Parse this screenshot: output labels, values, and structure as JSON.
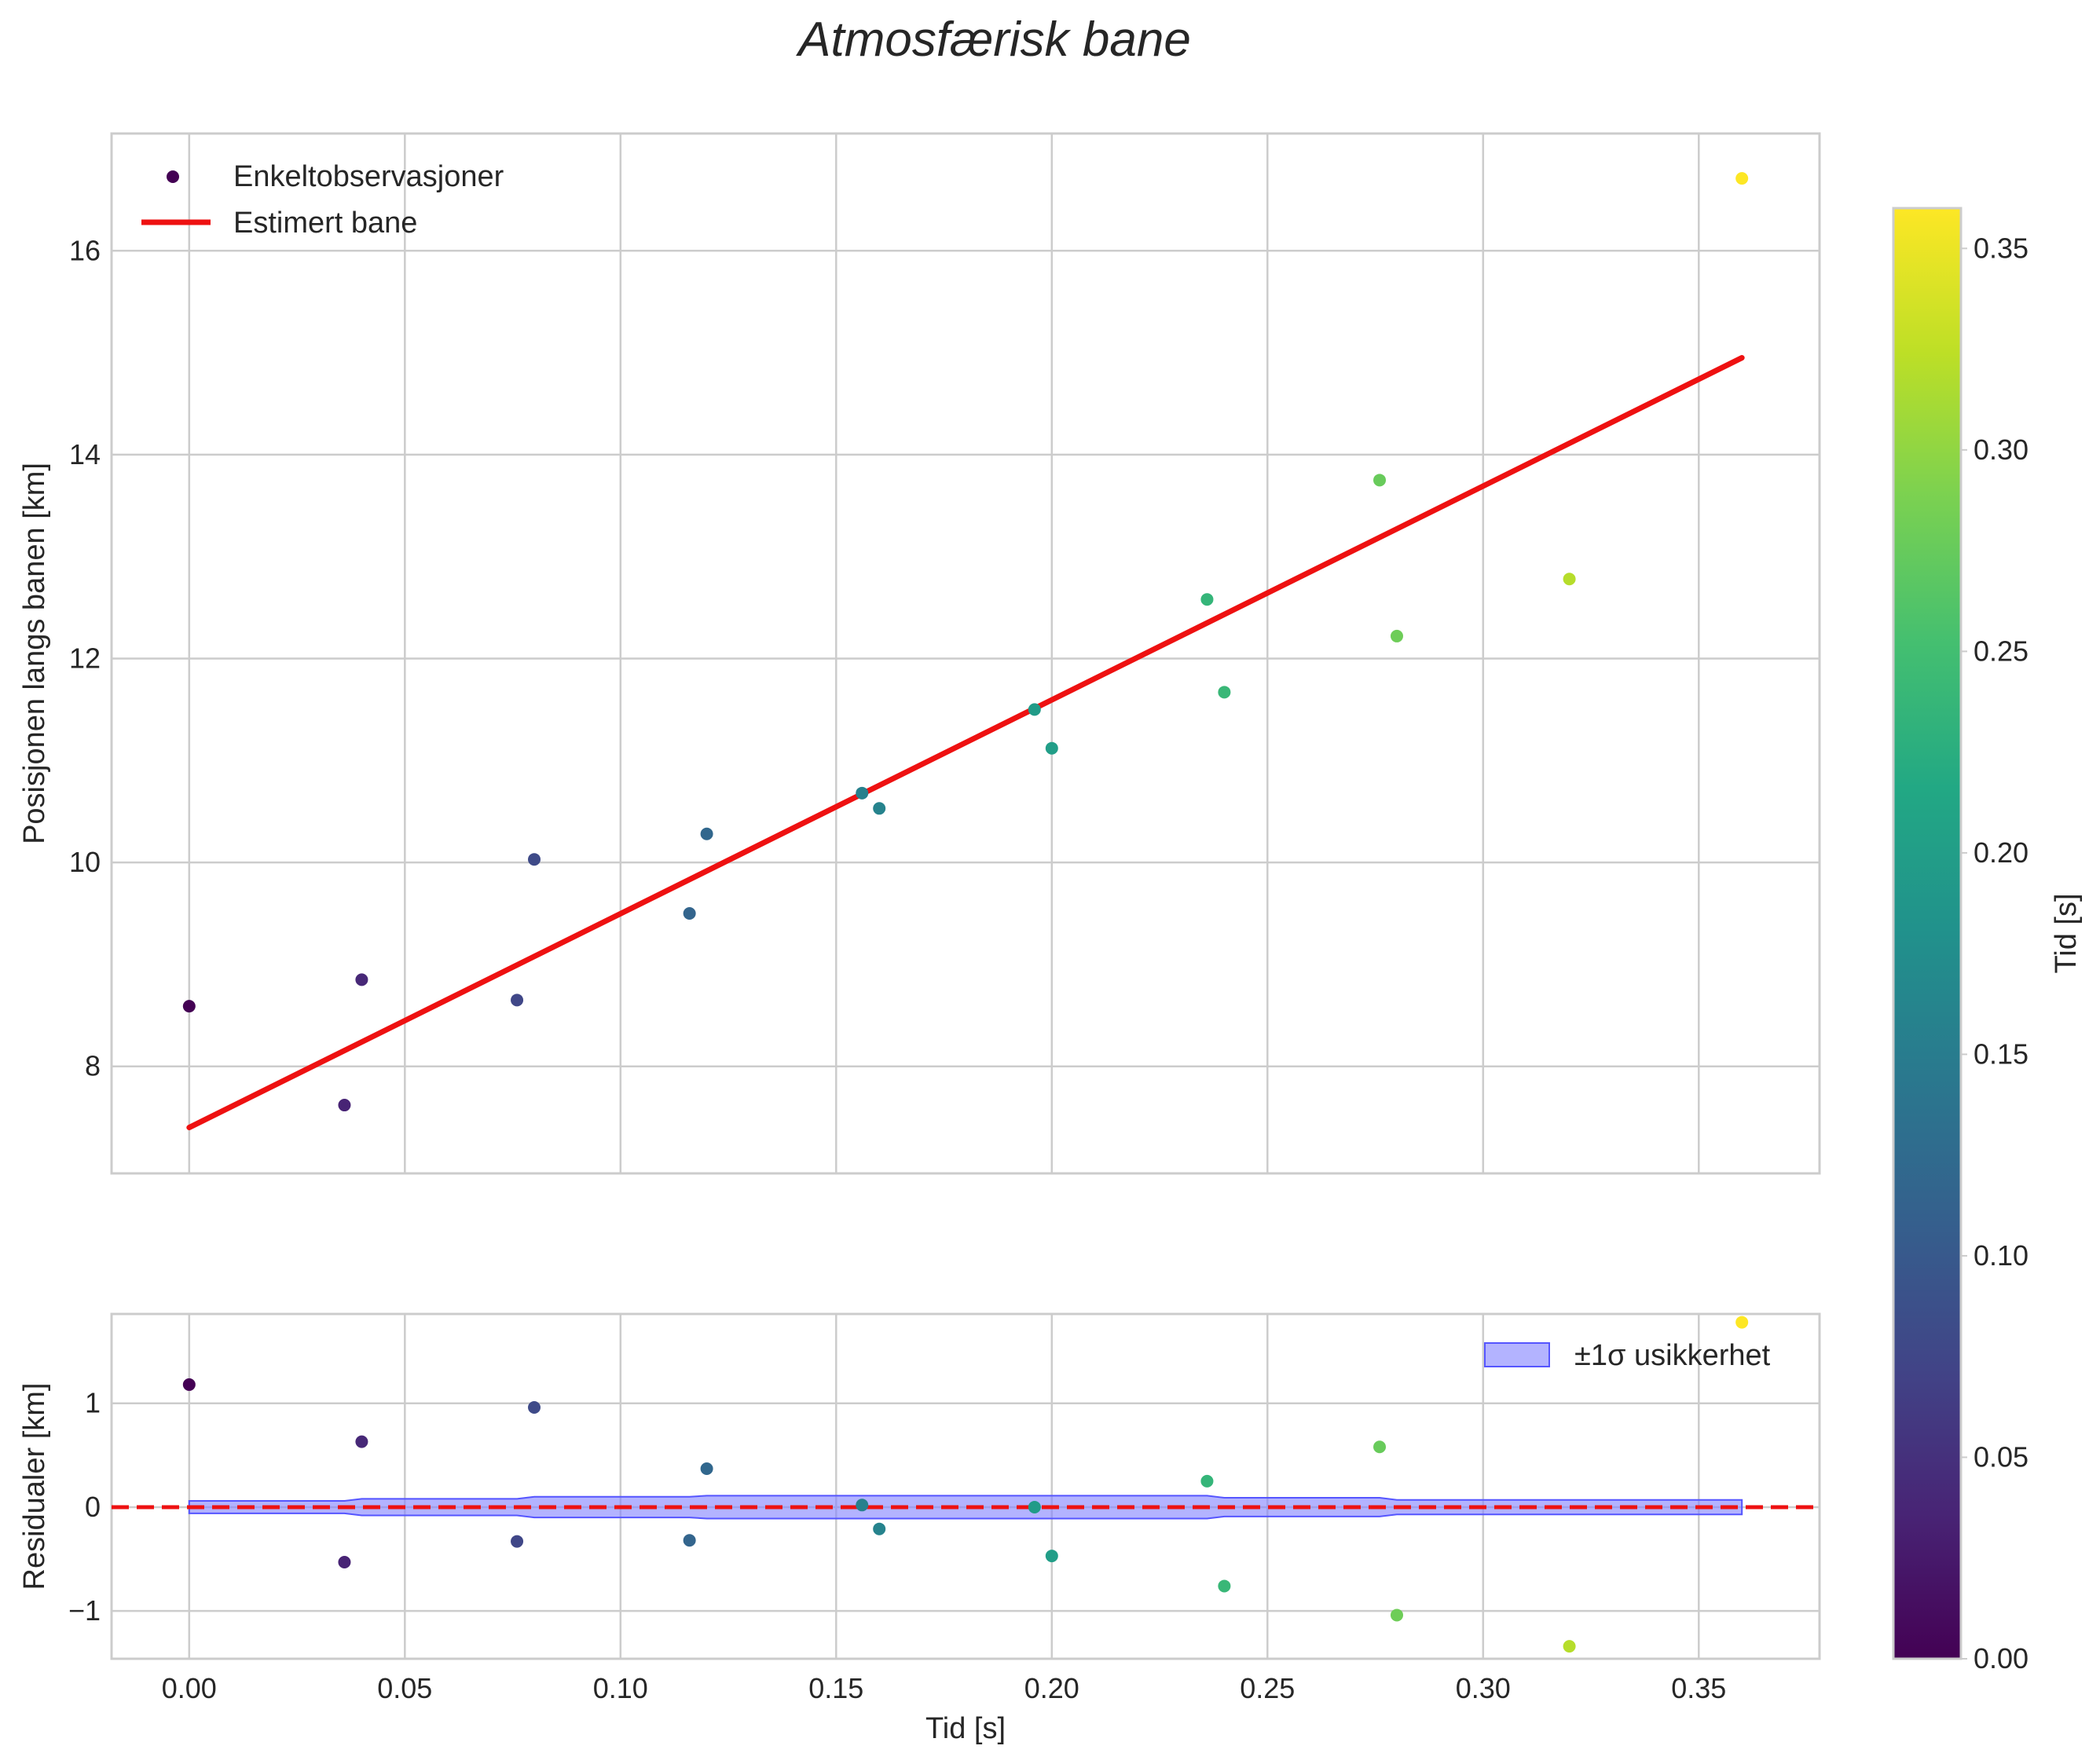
{
  "chart_data": {
    "type": "scatter",
    "title": "Atmosfærisk bane",
    "panels": [
      {
        "name": "main",
        "ylabel": "Posisjonen langs banen [km]",
        "xlim": [
          -0.018,
          0.378
        ],
        "ylim": [
          6.95,
          17.15
        ],
        "yticks": [
          8,
          10,
          12,
          14,
          16
        ],
        "grid": true,
        "legend_position": "top-left",
        "legend": {
          "scatter": "Enkeltobservasjoner",
          "line": "Estimert bane"
        }
      },
      {
        "name": "residuals",
        "ylabel": "Residualer [km]",
        "xlabel": "Tid [s]",
        "ylim": [
          -1.46,
          1.86
        ],
        "yticks": [
          -1,
          0,
          1
        ],
        "grid": true,
        "legend_position": "top-right",
        "legend": {
          "band": "±1σ usikkerhet"
        }
      }
    ],
    "xticks": [
      0.0,
      0.05,
      0.1,
      0.15,
      0.2,
      0.25,
      0.3,
      0.35
    ],
    "observations": {
      "t": [
        0.0,
        0.036,
        0.04,
        0.076,
        0.08,
        0.116,
        0.12,
        0.156,
        0.16,
        0.196,
        0.2,
        0.236,
        0.24,
        0.276,
        0.28,
        0.32,
        0.36
      ],
      "position": [
        8.59,
        7.62,
        8.85,
        8.65,
        10.03,
        9.5,
        10.28,
        10.68,
        10.53,
        11.5,
        11.12,
        12.58,
        11.67,
        13.75,
        12.22,
        12.78,
        16.71
      ],
      "residual": [
        1.18,
        -0.53,
        0.63,
        -0.33,
        0.96,
        -0.32,
        0.37,
        0.02,
        -0.21,
        0.0,
        -0.47,
        0.25,
        -0.76,
        0.58,
        -1.04,
        -1.34,
        1.78
      ]
    },
    "fit": {
      "name": "Estimert bane",
      "t": [
        0.0,
        0.36
      ],
      "position": [
        7.4,
        14.95
      ]
    },
    "uncertainty_band": {
      "t": [
        0.0,
        0.036,
        0.04,
        0.076,
        0.08,
        0.116,
        0.12,
        0.156,
        0.16,
        0.196,
        0.2,
        0.236,
        0.24,
        0.276,
        0.28,
        0.32,
        0.36
      ],
      "sigma": [
        0.06,
        0.06,
        0.08,
        0.08,
        0.1,
        0.1,
        0.11,
        0.11,
        0.11,
        0.11,
        0.11,
        0.11,
        0.09,
        0.09,
        0.07,
        0.07,
        0.07
      ]
    },
    "colorbar": {
      "label": "Tid [s]",
      "colormap": "viridis",
      "range": [
        0.0,
        0.36
      ],
      "ticks": [
        0.0,
        0.05,
        0.1,
        0.15,
        0.2,
        0.25,
        0.3,
        0.35
      ]
    },
    "colors": {
      "fit_line": "#ee1111",
      "zero_line": "#ee1111",
      "band_fill": "#8080ff",
      "band_edge": "#5555ff"
    }
  }
}
